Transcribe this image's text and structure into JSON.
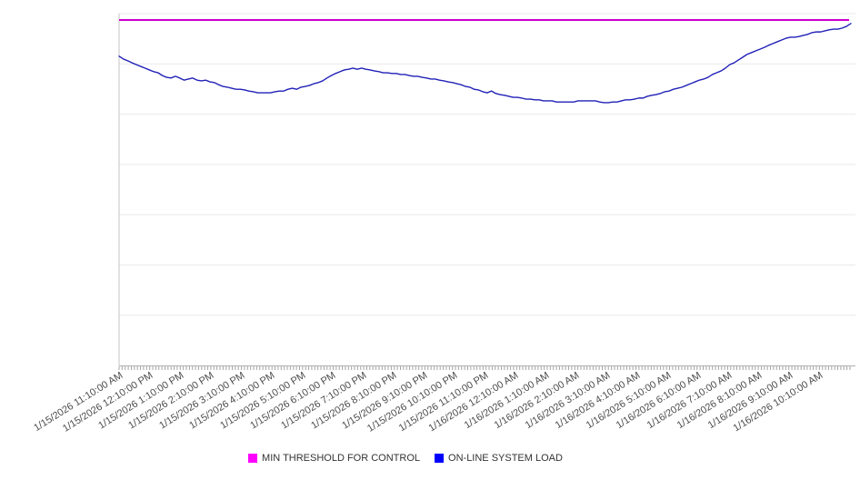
{
  "chart_data": {
    "type": "line",
    "title": "",
    "xlabel": "",
    "ylabel": "",
    "x_axis": {
      "labels": [
        "1/15/2026 11:10:00 AM",
        "1/15/2026 12:10:00 PM",
        "1/15/2026 1:10:00 PM",
        "1/15/2026 2:10:00 PM",
        "1/15/2026 3:10:00 PM",
        "1/15/2026 4:10:00 PM",
        "1/15/2026 5:10:00 PM",
        "1/15/2026 6:10:00 PM",
        "1/15/2026 7:10:00 PM",
        "1/15/2026 8:10:00 PM",
        "1/15/2026 9:10:00 PM",
        "1/15/2026 10:10:00 PM",
        "1/15/2026 11:10:00 PM",
        "1/16/2026 12:10:00 AM",
        "1/16/2026 1:10:00 AM",
        "1/16/2026 2:10:00 AM",
        "1/16/2026 3:10:00 AM",
        "1/16/2026 4:10:00 AM",
        "1/16/2026 5:10:00 AM",
        "1/16/2026 6:10:00 AM",
        "1/16/2026 7:10:00 AM",
        "1/16/2026 8:10:00 AM",
        "1/16/2026 9:10:00 AM",
        "1/16/2026 10:10:00 AM"
      ],
      "minor_tick_count": 240,
      "label_rotation_deg": -32
    },
    "y_axis": {
      "tick_labels_visible": false,
      "gridline_rows": 7,
      "range_frac": [
        0,
        1
      ]
    },
    "grid": "horizontal-only",
    "series": [
      {
        "name": "MIN THRESHOLD FOR CONTROL",
        "type": "constant-line",
        "color": "#cc00cc",
        "constant_value_frac": 0.982
      },
      {
        "name": "ON-LINE SYSTEM LOAD",
        "type": "line",
        "color": "#2121b8",
        "values_frac": [
          0.879,
          0.871,
          0.866,
          0.86,
          0.855,
          0.85,
          0.845,
          0.84,
          0.835,
          0.832,
          0.824,
          0.819,
          0.817,
          0.822,
          0.817,
          0.811,
          0.814,
          0.817,
          0.811,
          0.809,
          0.811,
          0.806,
          0.804,
          0.798,
          0.793,
          0.791,
          0.788,
          0.785,
          0.785,
          0.783,
          0.78,
          0.778,
          0.775,
          0.775,
          0.775,
          0.775,
          0.778,
          0.78,
          0.78,
          0.785,
          0.788,
          0.785,
          0.791,
          0.793,
          0.796,
          0.801,
          0.804,
          0.809,
          0.817,
          0.824,
          0.83,
          0.835,
          0.84,
          0.842,
          0.845,
          0.842,
          0.845,
          0.842,
          0.84,
          0.837,
          0.835,
          0.832,
          0.832,
          0.83,
          0.83,
          0.827,
          0.827,
          0.824,
          0.822,
          0.822,
          0.819,
          0.817,
          0.814,
          0.814,
          0.811,
          0.809,
          0.806,
          0.804,
          0.801,
          0.798,
          0.793,
          0.791,
          0.785,
          0.783,
          0.778,
          0.775,
          0.78,
          0.773,
          0.77,
          0.768,
          0.765,
          0.762,
          0.762,
          0.76,
          0.757,
          0.757,
          0.755,
          0.755,
          0.752,
          0.752,
          0.752,
          0.749,
          0.749,
          0.749,
          0.749,
          0.749,
          0.752,
          0.752,
          0.752,
          0.752,
          0.752,
          0.749,
          0.747,
          0.747,
          0.749,
          0.749,
          0.752,
          0.755,
          0.755,
          0.757,
          0.76,
          0.76,
          0.765,
          0.768,
          0.77,
          0.773,
          0.778,
          0.78,
          0.785,
          0.788,
          0.791,
          0.796,
          0.801,
          0.806,
          0.811,
          0.814,
          0.819,
          0.827,
          0.832,
          0.837,
          0.845,
          0.855,
          0.86,
          0.868,
          0.876,
          0.884,
          0.889,
          0.894,
          0.899,
          0.904,
          0.91,
          0.915,
          0.92,
          0.925,
          0.93,
          0.933,
          0.933,
          0.935,
          0.938,
          0.941,
          0.946,
          0.948,
          0.948,
          0.951,
          0.954,
          0.956,
          0.956,
          0.959,
          0.964,
          0.972
        ]
      }
    ],
    "legend": {
      "position": "bottom-center",
      "items": [
        {
          "label": "MIN THRESHOLD FOR CONTROL",
          "color": "#ff00ff"
        },
        {
          "label": "ON-LINE SYSTEM LOAD",
          "color": "#0000ff"
        }
      ]
    },
    "style": {
      "gridline_color": "#e9e9ec",
      "x_axis_color": "#b0b0b0",
      "y_axis_color": "#c4c4c4",
      "tick_color": "#a5a5a5",
      "background": "#ffffff"
    }
  }
}
